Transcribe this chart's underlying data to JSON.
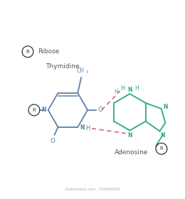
{
  "background": "#ffffff",
  "thymine_color": "#6080a8",
  "adenine_color": "#2aaa88",
  "hbond_color": "#c86060",
  "ribose_circle_color": "#333333",
  "label_color": "#555555",
  "title_thy": "Thymidine",
  "title_ade": "Adenosine",
  "ribose_label": "Ribose",
  "watermark": "shutterstock.com · 2506080641"
}
